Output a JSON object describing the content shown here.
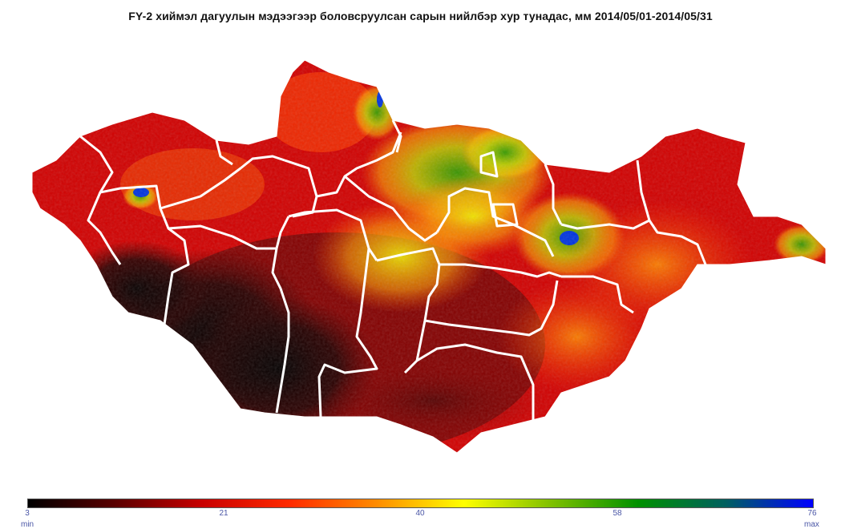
{
  "title": "FY-2  хиймэл дагуулын мэдээгээр боловсруулсан сарын нийлбэр хур тунадас, мм 2014/05/01-2014/05/31",
  "legend": {
    "ticks": [
      "3",
      "21",
      "40",
      "58",
      "76"
    ],
    "min_label": "min",
    "max_label": "max",
    "colors": [
      "#000000",
      "#5a0000",
      "#c80000",
      "#ff2a00",
      "#ff8c00",
      "#ffff00",
      "#7fc000",
      "#009000",
      "#006060",
      "#0000ff"
    ]
  },
  "map": {
    "region": "Mongolia",
    "border_color": "#ffffff",
    "background": "#ffffff"
  }
}
